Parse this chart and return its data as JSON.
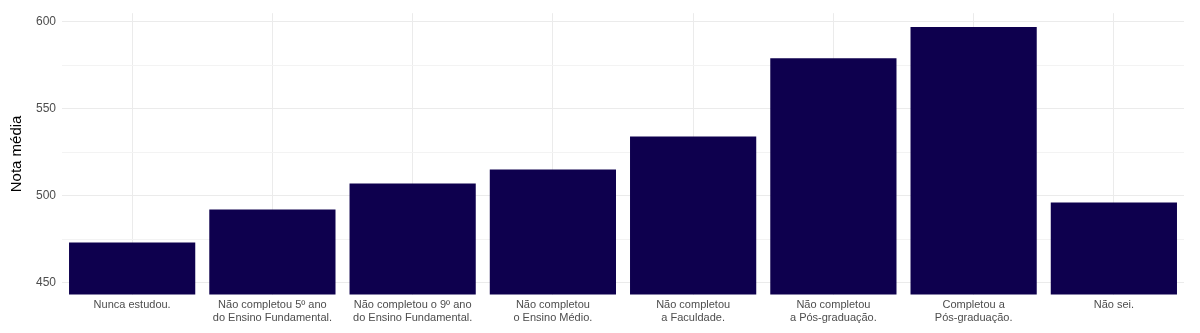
{
  "chart_data": {
    "type": "bar",
    "ylabel": "Nota média",
    "categories": [
      "Nunca estudou.",
      "Não completou 5º ano\ndo Ensino Fundamental.",
      "Não completou o 9º ano\ndo Ensino Fundamental.",
      "Não completou\no Ensino Médio.",
      "Não completou\na Faculdade.",
      "Não completou\na Pós-graduação.",
      "Completou a\nPós-graduação.",
      "Não sei."
    ],
    "values": [
      473,
      492,
      507,
      515,
      534,
      579,
      597,
      496
    ],
    "color": "#0e004e",
    "ylim": [
      443,
      605
    ],
    "yticks": [
      450,
      {
        "value": 475,
        "label": null
      },
      500,
      {
        "value": 525,
        "label": null
      },
      550,
      {
        "value": 575,
        "label": null
      },
      600
    ],
    "grid": true
  }
}
